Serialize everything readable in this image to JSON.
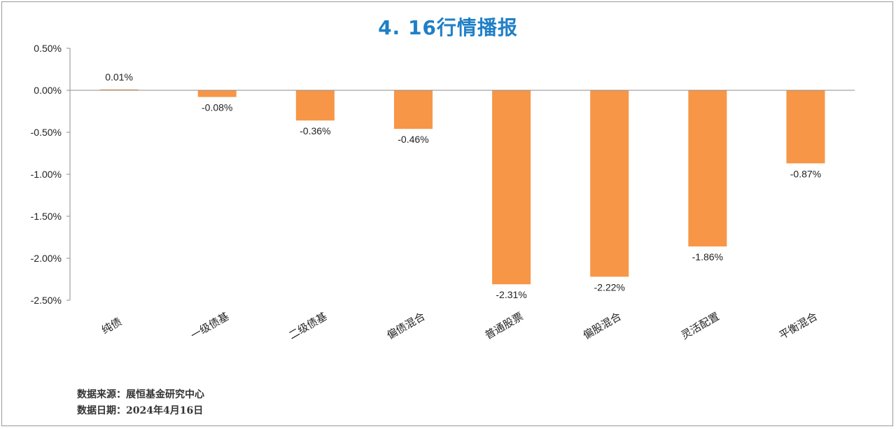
{
  "chart_data": {
    "type": "bar",
    "title": "4. 16行情播报",
    "categories": [
      "纯债",
      "一级债基",
      "二级债基",
      "偏债混合",
      "普通股票",
      "偏股混合",
      "灵活配置",
      "平衡混合"
    ],
    "values": [
      0.01,
      -0.08,
      -0.36,
      -0.46,
      -2.31,
      -2.22,
      -1.86,
      -0.87
    ],
    "data_labels": [
      "0.01%",
      "-0.08%",
      "-0.36%",
      "-0.46%",
      "-2.31%",
      "-2.22%",
      "-1.86%",
      "-0.87%"
    ],
    "ylim": [
      -2.5,
      0.5
    ],
    "yticks": [
      0.5,
      0.0,
      -0.5,
      -1.0,
      -1.5,
      -2.0,
      -2.5
    ],
    "ytick_labels": [
      "0.50%",
      "0.00%",
      "-0.50%",
      "-1.00%",
      "-1.50%",
      "-2.00%",
      "-2.50%"
    ],
    "xlabel": "",
    "ylabel": "",
    "grid": false,
    "bar_color": "#f79646"
  },
  "footer": {
    "source": "数据来源：展恒基金研究中心",
    "date": "数据日期：2024年4月16日"
  }
}
